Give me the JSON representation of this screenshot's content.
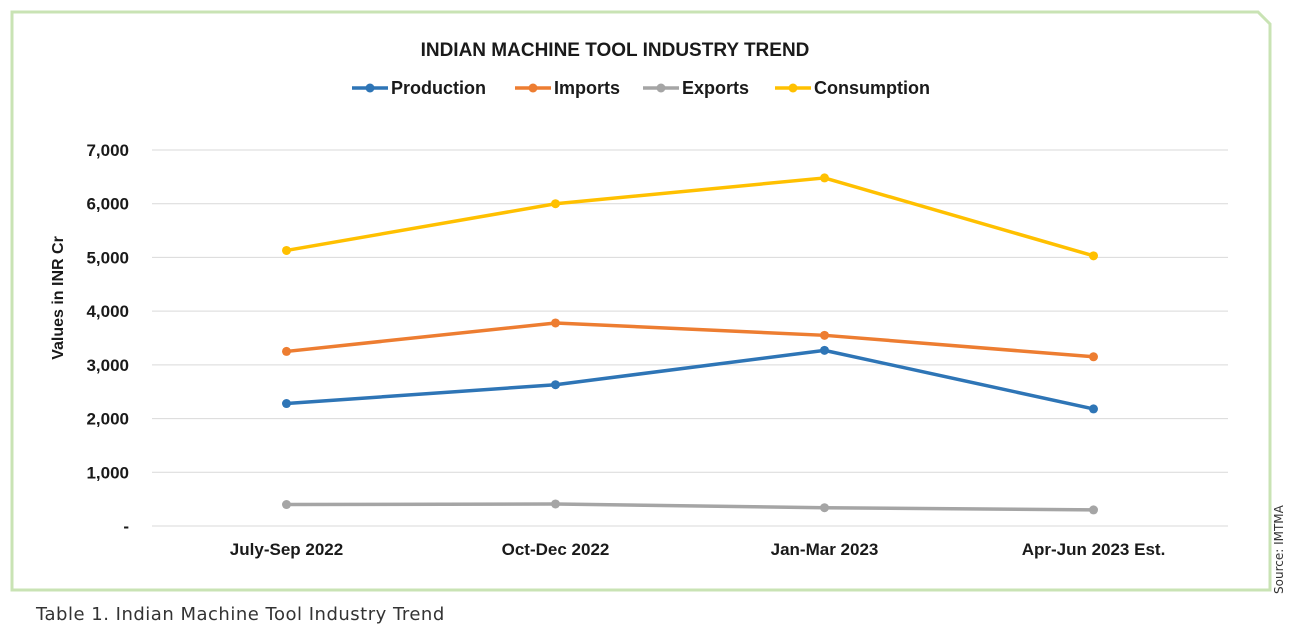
{
  "caption": "Table 1. Indian Machine Tool Industry Trend",
  "source": "Source: IMTMA",
  "colors": {
    "frame": "#c9e3b4",
    "grid": "#d9d9d9",
    "Production": "#2e75b6",
    "Imports": "#ed7d31",
    "Exports": "#a5a5a5",
    "Consumption": "#ffc000"
  },
  "chart_data": {
    "type": "line",
    "title": "INDIAN MACHINE TOOL INDUSTRY TREND",
    "xlabel": "",
    "ylabel": "Values in INR Cr",
    "categories": [
      "July-Sep 2022",
      "Oct-Dec 2022",
      "Jan-Mar 2023",
      "Apr-Jun 2023 Est."
    ],
    "ylim": [
      0,
      7000
    ],
    "yticks": [
      0,
      1000,
      2000,
      3000,
      4000,
      5000,
      6000,
      7000
    ],
    "ytick_labels": [
      "-",
      "1,000",
      "2,000",
      "3,000",
      "4,000",
      "5,000",
      "6,000",
      "7,000"
    ],
    "grid": true,
    "legend_position": "top",
    "series": [
      {
        "name": "Production",
        "values": [
          2280,
          2630,
          3270,
          2180
        ]
      },
      {
        "name": "Imports",
        "values": [
          3250,
          3780,
          3550,
          3150
        ]
      },
      {
        "name": "Exports",
        "values": [
          400,
          410,
          340,
          300
        ]
      },
      {
        "name": "Consumption",
        "values": [
          5130,
          6000,
          6480,
          5030
        ]
      }
    ]
  }
}
